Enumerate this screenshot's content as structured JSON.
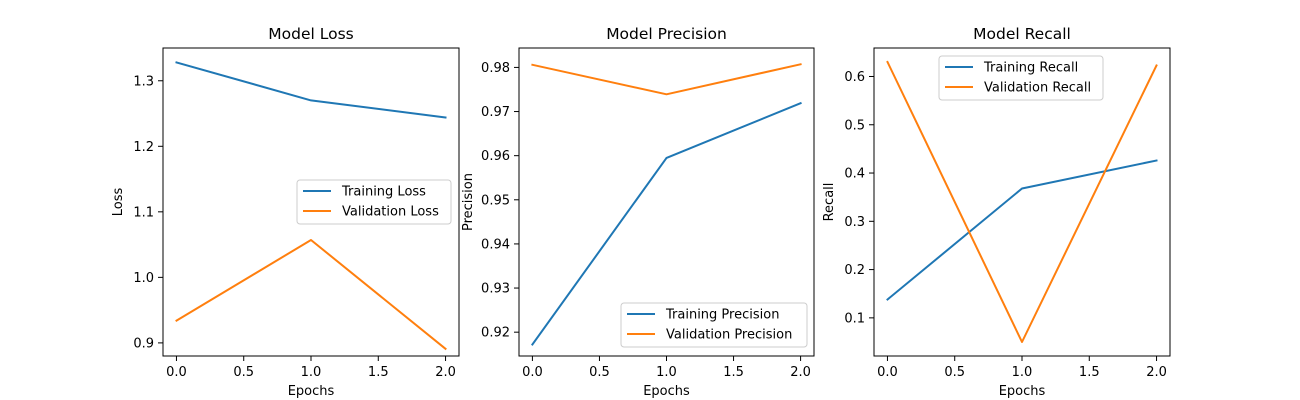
{
  "chart_data": [
    {
      "type": "line",
      "title": "Model Loss",
      "xlabel": "Epochs",
      "ylabel": "Loss",
      "x": [
        0,
        1,
        2
      ],
      "xlim": [
        -0.1,
        2.1
      ],
      "ylim": [
        0.88,
        1.35
      ],
      "xticks": [
        0.0,
        0.5,
        1.0,
        1.5,
        2.0
      ],
      "yticks": [
        0.9,
        1.0,
        1.1,
        1.2,
        1.3
      ],
      "tick_decimals": 1,
      "legend_location": "center-right",
      "series": [
        {
          "name": "Training Loss",
          "values": [
            1.328,
            1.27,
            1.244
          ],
          "color": "#1f77b4"
        },
        {
          "name": "Validation Loss",
          "values": [
            0.934,
            1.057,
            0.891
          ],
          "color": "#ff7f0e"
        }
      ]
    },
    {
      "type": "line",
      "title": "Model Precision",
      "xlabel": "Epochs",
      "ylabel": "Precision",
      "x": [
        0,
        1,
        2
      ],
      "xlim": [
        -0.1,
        2.1
      ],
      "ylim": [
        0.9146,
        0.9844
      ],
      "xticks": [
        0.0,
        0.5,
        1.0,
        1.5,
        2.0
      ],
      "yticks": [
        0.92,
        0.93,
        0.94,
        0.95,
        0.96,
        0.97,
        0.98
      ],
      "tick_decimals": 2,
      "legend_location": "bottom-right",
      "series": [
        {
          "name": "Training Precision",
          "values": [
            0.9172,
            0.9595,
            0.9719
          ],
          "color": "#1f77b4"
        },
        {
          "name": "Validation Precision",
          "values": [
            0.9806,
            0.9739,
            0.9807
          ],
          "color": "#ff7f0e"
        }
      ]
    },
    {
      "type": "line",
      "title": "Model Recall",
      "xlabel": "Epochs",
      "ylabel": "Recall",
      "x": [
        0,
        1,
        2
      ],
      "xlim": [
        -0.1,
        2.1
      ],
      "ylim": [
        0.021,
        0.659
      ],
      "xticks": [
        0.0,
        0.5,
        1.0,
        1.5,
        2.0
      ],
      "yticks": [
        0.1,
        0.2,
        0.3,
        0.4,
        0.5,
        0.6
      ],
      "tick_decimals": 1,
      "legend_location": "top-center",
      "series": [
        {
          "name": "Training Recall",
          "values": [
            0.138,
            0.368,
            0.426
          ],
          "color": "#1f77b4"
        },
        {
          "name": "Validation Recall",
          "values": [
            0.63,
            0.05,
            0.623
          ],
          "color": "#ff7f0e"
        }
      ]
    }
  ]
}
